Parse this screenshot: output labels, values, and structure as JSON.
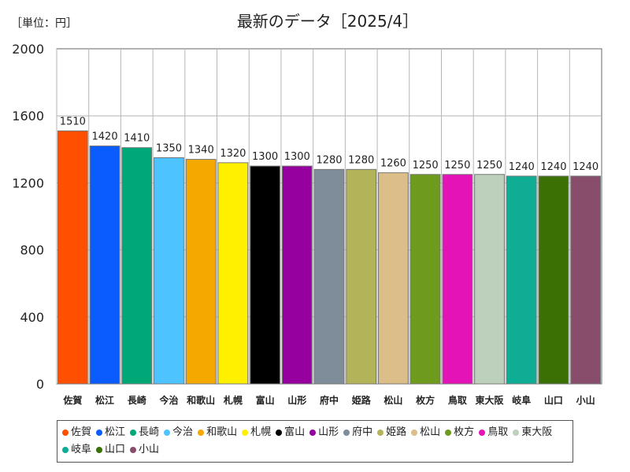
{
  "chart_data": {
    "type": "bar",
    "title": "最新のデータ［2025/4］",
    "unit_label": "［単位：円］",
    "xlabel": "",
    "ylabel": "",
    "ylim": [
      0,
      2000
    ],
    "yticks": [
      0,
      400,
      800,
      1200,
      1600,
      2000
    ],
    "grid": true,
    "legend_position": "bottom",
    "categories": [
      "佐賀",
      "松江",
      "長崎",
      "今治",
      "和歌山",
      "札幌",
      "富山",
      "山形",
      "府中",
      "姫路",
      "松山",
      "枚方",
      "鳥取",
      "東大阪",
      "岐阜",
      "山口",
      "小山"
    ],
    "values": [
      1510,
      1420,
      1410,
      1350,
      1340,
      1320,
      1300,
      1300,
      1280,
      1280,
      1260,
      1250,
      1250,
      1250,
      1240,
      1240,
      1240
    ],
    "colors": [
      "#ff4f00",
      "#0a5cff",
      "#00a878",
      "#4dc3ff",
      "#f5a800",
      "#fff000",
      "#000000",
      "#96009e",
      "#7f8c99",
      "#b3b35a",
      "#dcbe88",
      "#6e9a1e",
      "#e313b8",
      "#bcd0bb",
      "#10ad95",
      "#3b7005",
      "#884d6b"
    ]
  }
}
